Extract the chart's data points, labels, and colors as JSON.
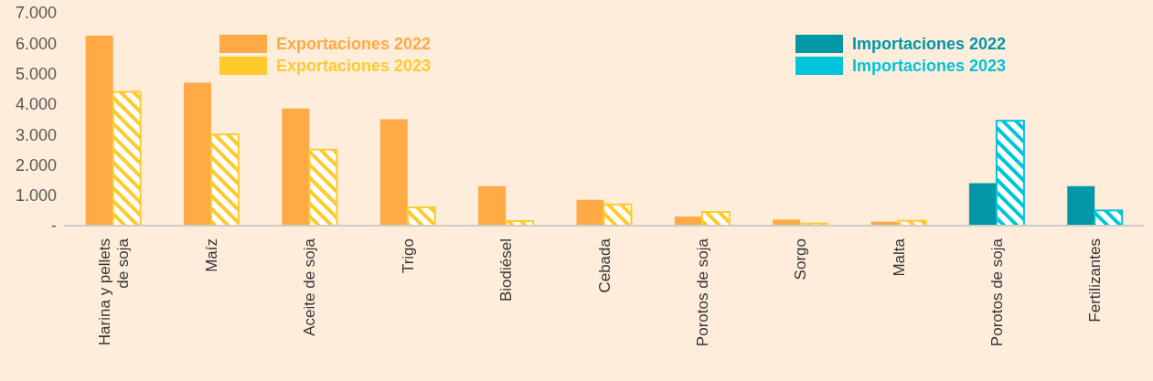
{
  "chart_data": {
    "type": "bar",
    "categories": [
      "Harina y pellets de soja",
      "Maíz",
      "Aceite de soja",
      "Trigo",
      "Biodiésel",
      "Cebada",
      "Porotos de soja",
      "Sorgo",
      "Malta",
      "Porotos de soja",
      "Fertilizantes"
    ],
    "series": [
      {
        "name": "Exportaciones 2022",
        "color": "#ffaa44",
        "values": [
          6250,
          4700,
          3850,
          3500,
          1300,
          850,
          300,
          200,
          130,
          null,
          null
        ]
      },
      {
        "name": "Exportaciones 2023",
        "color": "#ffca2c",
        "values": [
          4400,
          3000,
          2500,
          600,
          150,
          700,
          450,
          70,
          160,
          null,
          null
        ]
      },
      {
        "name": "Importaciones 2022",
        "color": "#0097a7",
        "values": [
          null,
          null,
          null,
          null,
          null,
          null,
          null,
          null,
          null,
          1400,
          1300
        ]
      },
      {
        "name": "Importaciones 2023",
        "color": "#00c4d9",
        "values": [
          null,
          null,
          null,
          null,
          null,
          null,
          null,
          null,
          null,
          3450,
          500
        ]
      }
    ],
    "ylim": [
      0,
      7000
    ],
    "yticks": [
      {
        "value": 0,
        "label": "-"
      },
      {
        "value": 1000,
        "label": "1.000"
      },
      {
        "value": 2000,
        "label": "2.000"
      },
      {
        "value": 3000,
        "label": "3.000"
      },
      {
        "value": 4000,
        "label": "4.000"
      },
      {
        "value": 5000,
        "label": "5.000"
      },
      {
        "value": 6000,
        "label": "6.000"
      },
      {
        "value": 7000,
        "label": "7.000"
      }
    ],
    "grid": false,
    "legend": "top"
  }
}
